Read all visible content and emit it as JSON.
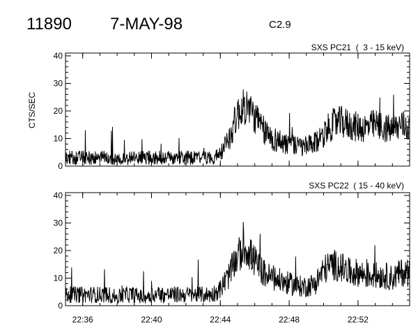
{
  "header": {
    "event_id": "11890",
    "date": "7-MAY-98",
    "flare_class": "C2.9"
  },
  "chart_data": [
    {
      "type": "line",
      "title": "SXS PC21  (  3 - 15 keV)",
      "ylabel": "CTS/SEC",
      "xlabel": "",
      "x_range": [
        "22:35",
        "22:55"
      ],
      "ylim": [
        0,
        40
      ],
      "y_ticks": [
        0,
        10,
        20,
        30,
        40
      ],
      "x_ticks": [
        "22:36",
        "22:40",
        "22:44",
        "22:48",
        "22:52"
      ],
      "grid": false,
      "series": [
        {
          "x": [
            "22:35:00",
            "22:35:30",
            "22:36:00",
            "22:36:30",
            "22:37:00",
            "22:37:30",
            "22:38:00",
            "22:38:30",
            "22:39:00",
            "22:39:30",
            "22:40:00",
            "22:40:30",
            "22:41:00",
            "22:41:30",
            "22:42:00",
            "22:42:30",
            "22:43:00",
            "22:43:30",
            "22:44:00",
            "22:44:30",
            "22:45:00",
            "22:45:30",
            "22:46:00",
            "22:46:30",
            "22:47:00",
            "22:47:30",
            "22:48:00",
            "22:48:30",
            "22:49:00",
            "22:49:30",
            "22:50:00",
            "22:50:30",
            "22:51:00",
            "22:51:30",
            "22:52:00",
            "22:52:30",
            "22:53:00",
            "22:53:30",
            "22:54:00",
            "22:54:30",
            "22:55:00"
          ],
          "values": [
            3,
            3,
            3,
            3,
            3,
            3,
            2,
            3,
            3,
            3,
            3,
            3,
            3,
            3,
            3,
            3,
            3,
            3,
            4,
            10,
            19,
            22,
            18,
            13,
            10,
            9,
            8,
            7,
            7,
            8,
            12,
            15,
            16,
            15,
            14,
            14,
            15,
            14,
            13,
            15,
            14
          ]
        }
      ]
    },
    {
      "type": "line",
      "title": "SXS PC22  ( 15 - 40 keV)",
      "ylabel": "",
      "xlabel": "",
      "x_range": [
        "22:35",
        "22:55"
      ],
      "ylim": [
        0,
        40
      ],
      "y_ticks": [
        0,
        10,
        20,
        30,
        40
      ],
      "x_ticks": [
        "22:36",
        "22:40",
        "22:44",
        "22:48",
        "22:52"
      ],
      "grid": false,
      "series": [
        {
          "x": [
            "22:35:00",
            "22:35:30",
            "22:36:00",
            "22:36:30",
            "22:37:00",
            "22:37:30",
            "22:38:00",
            "22:38:30",
            "22:39:00",
            "22:39:30",
            "22:40:00",
            "22:40:30",
            "22:41:00",
            "22:41:30",
            "22:42:00",
            "22:42:30",
            "22:43:00",
            "22:43:30",
            "22:44:00",
            "22:44:30",
            "22:45:00",
            "22:45:30",
            "22:46:00",
            "22:46:30",
            "22:47:00",
            "22:47:30",
            "22:48:00",
            "22:48:30",
            "22:49:00",
            "22:49:30",
            "22:50:00",
            "22:50:30",
            "22:51:00",
            "22:51:30",
            "22:52:00",
            "22:52:30",
            "22:53:00",
            "22:53:30",
            "22:54:00",
            "22:54:30",
            "22:55:00"
          ],
          "values": [
            4,
            4,
            4,
            4,
            4,
            4,
            3,
            4,
            4,
            3,
            4,
            4,
            4,
            4,
            4,
            4,
            4,
            4,
            6,
            11,
            18,
            21,
            16,
            12,
            10,
            9,
            8,
            7,
            7,
            8,
            13,
            15,
            14,
            12,
            12,
            11,
            11,
            11,
            10,
            12,
            12
          ]
        }
      ]
    }
  ]
}
